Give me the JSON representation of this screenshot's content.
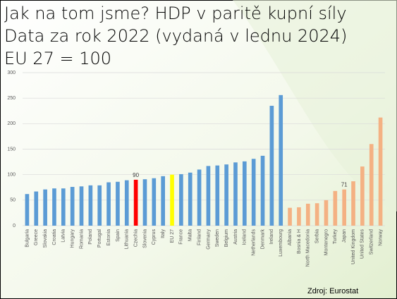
{
  "chart_data": {
    "type": "bar",
    "title": [
      "Jak na tom jsme? HDP v paritě kupní síly",
      "Data za rok 2022 (vydaná v lednu 2024)",
      "EU 27 = 100"
    ],
    "categories": [
      "Bulgaria",
      "Greece",
      "Slovakia",
      "Croatia",
      "Latvia",
      "Hungary",
      "Romania",
      "Poland",
      "Portugal",
      "Estonia",
      "Spain",
      "Lithuania",
      "Czechia",
      "Slovenia",
      "Cyprus",
      "Italy",
      "EU 27",
      "France",
      "Malta",
      "Finland",
      "Germany",
      "Sweden",
      "Belgium",
      "Austria",
      "Iceland",
      "Netherlands",
      "Denmark",
      "Ireland",
      "Luxembourg",
      "Albania",
      "Bosnia & H",
      "North Macedonia",
      "Serbia",
      "Montenegro",
      "Turkey",
      "Japan",
      "United Kingdom",
      "United States",
      "Switzerland",
      "Norway"
    ],
    "values": [
      62,
      67,
      71,
      73,
      73,
      76,
      77,
      79,
      79,
      85,
      86,
      89,
      90,
      91,
      93,
      97,
      100,
      101,
      104,
      110,
      117,
      118,
      120,
      124,
      126,
      131,
      137,
      235,
      256,
      35,
      36,
      43,
      44,
      50,
      68,
      71,
      87,
      116,
      160,
      212
    ],
    "value_labels": [
      null,
      null,
      null,
      null,
      null,
      null,
      null,
      null,
      null,
      null,
      null,
      null,
      "90",
      null,
      null,
      null,
      null,
      null,
      null,
      null,
      null,
      null,
      null,
      null,
      null,
      null,
      null,
      null,
      null,
      null,
      null,
      null,
      null,
      null,
      null,
      "71",
      null,
      null,
      null,
      null
    ],
    "colors": [
      "#5b9bd5",
      "#5b9bd5",
      "#5b9bd5",
      "#5b9bd5",
      "#5b9bd5",
      "#5b9bd5",
      "#5b9bd5",
      "#5b9bd5",
      "#5b9bd5",
      "#5b9bd5",
      "#5b9bd5",
      "#5b9bd5",
      "#ff0000",
      "#5b9bd5",
      "#5b9bd5",
      "#5b9bd5",
      "#ffff00",
      "#5b9bd5",
      "#5b9bd5",
      "#5b9bd5",
      "#5b9bd5",
      "#5b9bd5",
      "#5b9bd5",
      "#5b9bd5",
      "#5b9bd5",
      "#5b9bd5",
      "#5b9bd5",
      "#5b9bd5",
      "#5b9bd5",
      "#f4b183",
      "#f4b183",
      "#f4b183",
      "#f4b183",
      "#f4b183",
      "#f4b183",
      "#f4b183",
      "#f4b183",
      "#f4b183",
      "#f4b183",
      "#f4b183"
    ],
    "ylim": [
      0,
      300
    ],
    "yticks": [
      0,
      50,
      100,
      150,
      200,
      250,
      300
    ],
    "grid": true,
    "source": "Zdroj: Eurostat"
  }
}
